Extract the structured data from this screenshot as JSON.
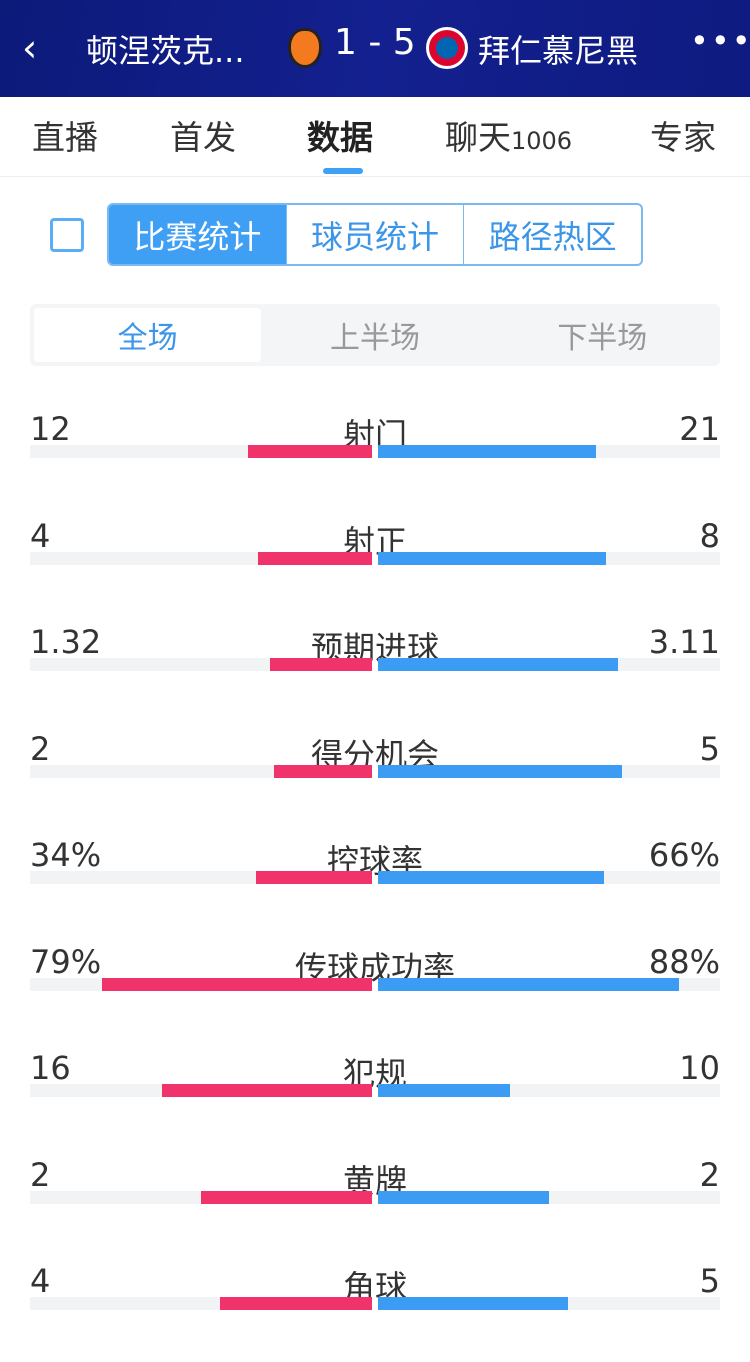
{
  "header": {
    "back": "‹",
    "home_team": "顿涅茨克...",
    "score": "1 - 5",
    "away_team": "拜仁慕尼黑",
    "more": "•••"
  },
  "tabs": [
    {
      "label": "直播"
    },
    {
      "label": "首发"
    },
    {
      "label": "数据"
    },
    {
      "label": "聊天",
      "count": "1006"
    },
    {
      "label": "专家"
    }
  ],
  "active_tab": "数据",
  "segments": [
    "比赛统计",
    "球员统计",
    "路径热区"
  ],
  "periods": [
    "全场",
    "上半场",
    "下半场"
  ],
  "colors": {
    "home": "#f0336b",
    "away": "#3c9cf3",
    "accent": "#3f9ff5"
  },
  "stats": [
    {
      "name": "射门",
      "left": "12",
      "right": "21",
      "left_fill": 0.364,
      "right_fill": 0.636
    },
    {
      "name": "射正",
      "left": "4",
      "right": "8",
      "left_fill": 0.333,
      "right_fill": 0.667
    },
    {
      "name": "预期进球",
      "left": "1.32",
      "right": "3.11",
      "left_fill": 0.298,
      "right_fill": 0.702
    },
    {
      "name": "得分机会",
      "left": "2",
      "right": "5",
      "left_fill": 0.286,
      "right_fill": 0.714
    },
    {
      "name": "控球率",
      "left": "34%",
      "right": "66%",
      "left_fill": 0.34,
      "right_fill": 0.66
    },
    {
      "name": "传球成功率",
      "left": "79%",
      "right": "88%",
      "left_fill": 0.79,
      "right_fill": 0.88
    },
    {
      "name": "犯规",
      "left": "16",
      "right": "10",
      "left_fill": 0.615,
      "right_fill": 0.385
    },
    {
      "name": "黄牌",
      "left": "2",
      "right": "2",
      "left_fill": 0.5,
      "right_fill": 0.5
    },
    {
      "name": "角球",
      "left": "4",
      "right": "5",
      "left_fill": 0.444,
      "right_fill": 0.556
    }
  ]
}
